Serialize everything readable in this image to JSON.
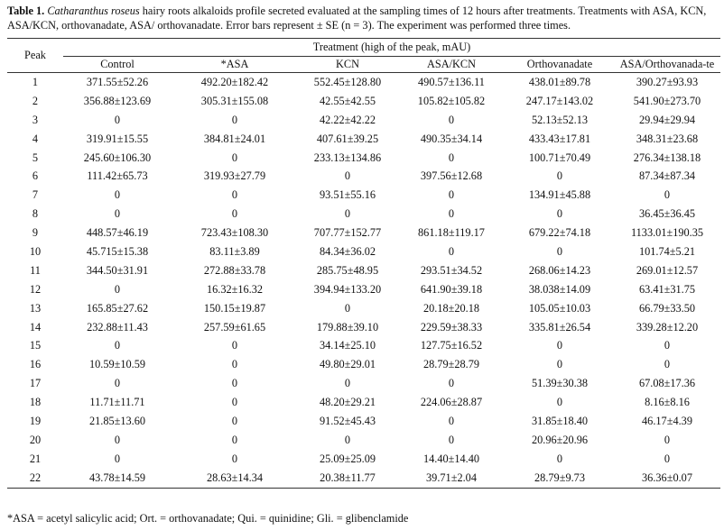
{
  "caption": {
    "label": "Table 1.",
    "species": "Catharanthus roseus",
    "text": " hairy roots alkaloids profile secreted evaluated at the sampling times of 12 hours after treatments. Treatments with ASA, KCN, ASA/KCN, orthovanadate, ASA/ orthovanadate. Error bars represent ± SE (n = 3). The experiment was performed three times."
  },
  "table": {
    "peak_header": "Peak",
    "group_header": "Treatment (high of the peak, mAU)",
    "columns": [
      "Control",
      "*ASA",
      "KCN",
      "ASA/KCN",
      "Orthovanadate",
      "ASA/Orthovanada-te"
    ],
    "rows": [
      {
        "peak": "1",
        "cells": [
          "371.55±52.26",
          "492.20±182.42",
          "552.45±128.80",
          "490.57±136.11",
          "438.01±89.78",
          "390.27±93.93"
        ]
      },
      {
        "peak": "2",
        "cells": [
          "356.88±123.69",
          "305.31±155.08",
          "42.55±42.55",
          "105.82±105.82",
          "247.17±143.02",
          "541.90±273.70"
        ]
      },
      {
        "peak": "3",
        "cells": [
          "0",
          "0",
          "42.22±42.22",
          "0",
          "52.13±52.13",
          "29.94±29.94"
        ]
      },
      {
        "peak": "4",
        "cells": [
          "319.91±15.55",
          "384.81±24.01",
          "407.61±39.25",
          "490.35±34.14",
          "433.43±17.81",
          "348.31±23.68"
        ]
      },
      {
        "peak": "5",
        "cells": [
          "245.60±106.30",
          "0",
          "233.13±134.86",
          "0",
          "100.71±70.49",
          "276.34±138.18"
        ]
      },
      {
        "peak": "6",
        "cells": [
          "111.42±65.73",
          "319.93±27.79",
          "0",
          "397.56±12.68",
          "0",
          "87.34±87.34"
        ]
      },
      {
        "peak": "7",
        "cells": [
          "0",
          "0",
          "93.51±55.16",
          "0",
          "134.91±45.88",
          "0"
        ]
      },
      {
        "peak": "8",
        "cells": [
          "0",
          "0",
          "0",
          "0",
          "0",
          "36.45±36.45"
        ]
      },
      {
        "peak": "9",
        "cells": [
          "448.57±46.19",
          "723.43±108.30",
          "707.77±152.77",
          "861.18±119.17",
          "679.22±74.18",
          "1133.01±190.35"
        ]
      },
      {
        "peak": "10",
        "cells": [
          "45.715±15.38",
          "83.11±3.89",
          "84.34±36.02",
          "0",
          "0",
          "101.74±5.21"
        ]
      },
      {
        "peak": "11",
        "cells": [
          "344.50±31.91",
          "272.88±33.78",
          "285.75±48.95",
          "293.51±34.52",
          "268.06±14.23",
          "269.01±12.57"
        ]
      },
      {
        "peak": "12",
        "cells": [
          "0",
          "16.32±16.32",
          "394.94±133.20",
          "641.90±39.18",
          "38.038±14.09",
          "63.41±31.75"
        ]
      },
      {
        "peak": "13",
        "cells": [
          "165.85±27.62",
          "150.15±19.87",
          "0",
          "20.18±20.18",
          "105.05±10.03",
          "66.79±33.50"
        ]
      },
      {
        "peak": "14",
        "cells": [
          "232.88±11.43",
          "257.59±61.65",
          "179.88±39.10",
          "229.59±38.33",
          "335.81±26.54",
          "339.28±12.20"
        ]
      },
      {
        "peak": "15",
        "cells": [
          "0",
          "0",
          "34.14±25.10",
          "127.75±16.52",
          "0",
          "0"
        ]
      },
      {
        "peak": "16",
        "cells": [
          "10.59±10.59",
          "0",
          "49.80±29.01",
          "28.79±28.79",
          "0",
          "0"
        ]
      },
      {
        "peak": "17",
        "cells": [
          "0",
          "0",
          "0",
          "0",
          "51.39±30.38",
          "67.08±17.36"
        ]
      },
      {
        "peak": "18",
        "cells": [
          "11.71±11.71",
          "0",
          "48.20±29.21",
          "224.06±28.87",
          "0",
          "8.16±8.16"
        ]
      },
      {
        "peak": "19",
        "cells": [
          "21.85±13.60",
          "0",
          "91.52±45.43",
          "0",
          "31.85±18.40",
          "46.17±4.39"
        ]
      },
      {
        "peak": "20",
        "cells": [
          "0",
          "0",
          "0",
          "0",
          "20.96±20.96",
          "0"
        ]
      },
      {
        "peak": "21",
        "cells": [
          "0",
          "0",
          "25.09±25.09",
          "14.40±14.40",
          "0",
          "0"
        ]
      },
      {
        "peak": "22",
        "cells": [
          "43.78±14.59",
          "28.63±14.34",
          "20.38±11.77",
          "39.71±2.04",
          "28.79±9.73",
          "36.36±0.07"
        ]
      }
    ]
  },
  "footnote": "*ASA = acetyl salicylic acid; Ort. = orthovanadate; Qui. = quinidine; Gli. = glibenclamide"
}
